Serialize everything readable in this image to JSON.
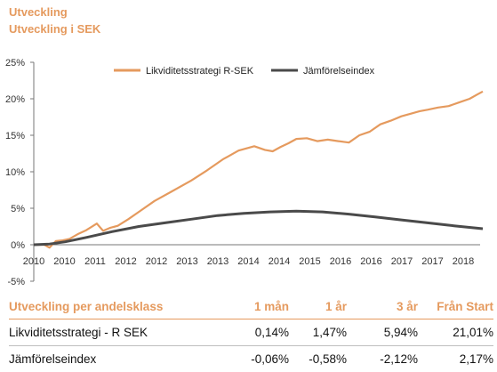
{
  "header": {
    "title": "Utveckling",
    "subtitle": "Utveckling i SEK"
  },
  "chart_data": {
    "type": "line",
    "title": "",
    "xlabel": "",
    "ylabel": "",
    "y_ticks": [
      "25%",
      "20%",
      "15%",
      "10%",
      "5%",
      "0%",
      "-5%"
    ],
    "x_ticks": [
      "2010",
      "2010",
      "2011",
      "2012",
      "2012",
      "2013",
      "2013",
      "2014",
      "2014",
      "2015",
      "2016",
      "2016",
      "2017",
      "2017",
      "2018"
    ],
    "ylim": [
      -5,
      25
    ],
    "xlim": [
      2010.0,
      2018.5
    ],
    "grid": false,
    "legend_position": "top",
    "series": [
      {
        "name": "Likviditetsstrategi R-SEK",
        "color": "#e59a5e",
        "x": [
          2010.0,
          2010.2,
          2010.3,
          2010.42,
          2010.55,
          2010.68,
          2010.85,
          2011.0,
          2011.2,
          2011.32,
          2011.45,
          2011.6,
          2011.8,
          2012.0,
          2012.3,
          2012.6,
          2013.0,
          2013.3,
          2013.6,
          2013.9,
          2014.2,
          2014.4,
          2014.55,
          2014.7,
          2014.85,
          2015.0,
          2015.2,
          2015.4,
          2015.6,
          2015.8,
          2016.0,
          2016.2,
          2016.4,
          2016.6,
          2016.8,
          2017.0,
          2017.2,
          2017.35,
          2017.5,
          2017.7,
          2017.9,
          2018.1,
          2018.3,
          2018.45,
          2018.55
        ],
        "y": [
          0,
          0,
          -0.4,
          0.5,
          0.6,
          0.8,
          1.5,
          2.0,
          2.9,
          1.9,
          2.3,
          2.6,
          3.5,
          4.5,
          6.0,
          7.2,
          8.8,
          10.2,
          11.7,
          12.9,
          13.5,
          13.0,
          12.8,
          13.4,
          13.9,
          14.5,
          14.6,
          14.2,
          14.4,
          14.2,
          14.0,
          15.0,
          15.5,
          16.5,
          17.0,
          17.6,
          18.0,
          18.3,
          18.5,
          18.8,
          19.0,
          19.5,
          20.0,
          20.6,
          21.0
        ]
      },
      {
        "name": "Jämförelseindex",
        "color": "#4a4a4a",
        "x": [
          2010.0,
          2010.3,
          2010.6,
          2011.0,
          2011.5,
          2012.0,
          2012.5,
          2013.0,
          2013.5,
          2014.0,
          2014.5,
          2015.0,
          2015.5,
          2016.0,
          2016.5,
          2017.0,
          2017.5,
          2018.0,
          2018.55
        ],
        "y": [
          0,
          0.1,
          0.4,
          1.0,
          1.8,
          2.5,
          3.0,
          3.5,
          4.0,
          4.3,
          4.5,
          4.6,
          4.5,
          4.2,
          3.8,
          3.4,
          3.0,
          2.6,
          2.2
        ]
      }
    ]
  },
  "table": {
    "headers": [
      "Utveckling per andelsklass",
      "1 mån",
      "1 år",
      "3 år",
      "Från Start"
    ],
    "rows": [
      [
        "Likviditetsstrategi - R SEK",
        "0,14%",
        "1,47%",
        "5,94%",
        "21,01%"
      ],
      [
        "Jämförelseindex",
        "-0,06%",
        "-0,58%",
        "-2,12%",
        "2,17%"
      ]
    ]
  }
}
